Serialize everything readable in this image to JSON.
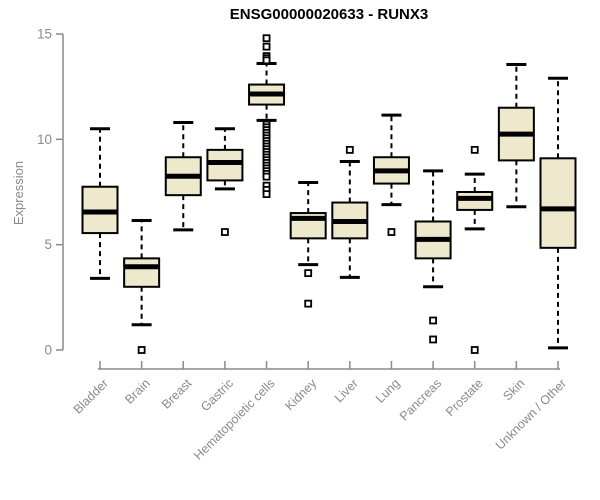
{
  "title": "ENSG00000020633 - RUNX3",
  "colors": {
    "box_fill": "#EEE8CD",
    "box_stroke": "#000000",
    "median": "#000000",
    "whisker": "#000000",
    "outlier_fill": "#ffffff",
    "axis": "#8a8a8a",
    "tick_label": "#8a8a8a",
    "title": "#000000",
    "background": "#ffffff"
  },
  "chart_data": {
    "type": "boxplot",
    "title": "ENSG00000020633 - RUNX3",
    "xlabel": "",
    "ylabel": "Expression",
    "ylim": [
      0,
      15
    ],
    "yticks": [
      0,
      5,
      10,
      15
    ],
    "grid": false,
    "legend": "none",
    "categories": [
      "Bladder",
      "Brain",
      "Breast",
      "Gastric",
      "Hematopoietic cells",
      "Kidney",
      "Liver",
      "Lung",
      "Pancreas",
      "Prostate",
      "Skin",
      "Unknown / Other"
    ],
    "series": [
      {
        "name": "Bladder",
        "whisker_low": 3.4,
        "q1": 5.55,
        "median": 6.55,
        "q3": 7.75,
        "whisker_high": 10.5,
        "outliers": []
      },
      {
        "name": "Brain",
        "whisker_low": 1.2,
        "q1": 3.0,
        "median": 3.95,
        "q3": 4.35,
        "whisker_high": 6.15,
        "outliers": [
          0
        ]
      },
      {
        "name": "Breast",
        "whisker_low": 5.7,
        "q1": 7.35,
        "median": 8.25,
        "q3": 9.15,
        "whisker_high": 10.8,
        "outliers": []
      },
      {
        "name": "Gastric",
        "whisker_low": 7.65,
        "q1": 8.05,
        "median": 8.9,
        "q3": 9.5,
        "whisker_high": 10.5,
        "outliers": [
          5.6
        ]
      },
      {
        "name": "Hematopoietic cells",
        "whisker_low": 10.9,
        "q1": 11.65,
        "median": 12.15,
        "q3": 12.6,
        "whisker_high": 13.6,
        "outliers": [
          14.8,
          14.4,
          13.95,
          13.85,
          13.75,
          10.7,
          10.57,
          10.44,
          10.31,
          10.18,
          10.05,
          9.92,
          9.79,
          9.66,
          9.53,
          9.4,
          9.27,
          9.14,
          9.01,
          8.88,
          8.75,
          8.62,
          8.49,
          8.36,
          8.23,
          7.8,
          7.6,
          7.4
        ]
      },
      {
        "name": "Kidney",
        "whisker_low": 4.05,
        "q1": 5.3,
        "median": 6.25,
        "q3": 6.5,
        "whisker_high": 7.95,
        "outliers": [
          3.65,
          2.2
        ]
      },
      {
        "name": "Liver",
        "whisker_low": 3.45,
        "q1": 5.3,
        "median": 6.1,
        "q3": 7.0,
        "whisker_high": 8.95,
        "outliers": [
          9.5
        ]
      },
      {
        "name": "Lung",
        "whisker_low": 6.9,
        "q1": 7.9,
        "median": 8.5,
        "q3": 9.15,
        "whisker_high": 11.15,
        "outliers": [
          5.6
        ]
      },
      {
        "name": "Pancreas",
        "whisker_low": 3.0,
        "q1": 4.35,
        "median": 5.25,
        "q3": 6.1,
        "whisker_high": 8.5,
        "outliers": [
          1.4,
          0.5
        ]
      },
      {
        "name": "Prostate",
        "whisker_low": 5.75,
        "q1": 6.65,
        "median": 7.2,
        "q3": 7.5,
        "whisker_high": 8.35,
        "outliers": [
          9.5,
          0
        ]
      },
      {
        "name": "Skin",
        "whisker_low": 6.8,
        "q1": 9.0,
        "median": 10.25,
        "q3": 11.5,
        "whisker_high": 13.55,
        "outliers": []
      },
      {
        "name": "Unknown / Other",
        "whisker_low": 0.1,
        "q1": 4.85,
        "median": 6.7,
        "q3": 9.1,
        "whisker_high": 12.9,
        "outliers": []
      }
    ]
  }
}
